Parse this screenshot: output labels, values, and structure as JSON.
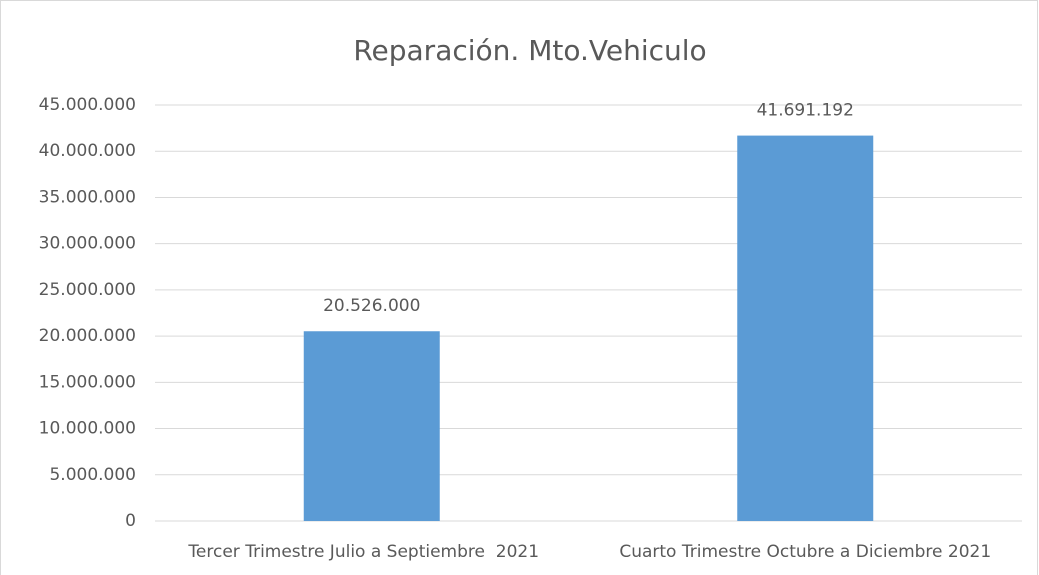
{
  "chart_data": {
    "type": "bar",
    "title": "Reparación. Mto.Vehiculo",
    "categories": [
      "Tercer Trimestre Julio a Septiembre  2021",
      "Cuarto Trimestre Octubre a Diciembre 2021"
    ],
    "values": [
      20526000,
      41691192
    ],
    "value_labels": [
      "20.526.000",
      "41.691.192"
    ],
    "color": "#5b9bd5",
    "ylim": [
      0,
      45000000
    ],
    "yticks": [
      0,
      {
        "value": 5000000,
        "label": "5.000.000"
      },
      {
        "value": 10000000,
        "label": "10.000.000"
      },
      {
        "value": 15000000,
        "label": "15.000.000"
      },
      {
        "value": 20000000,
        "label": "20.000.000"
      },
      {
        "value": 25000000,
        "label": "25.000.000"
      },
      {
        "value": 30000000,
        "label": "30.000.000"
      },
      {
        "value": 35000000,
        "label": "35.000.000"
      },
      {
        "value": 40000000,
        "label": "40.000.000"
      },
      {
        "value": 45000000,
        "label": "45.000.000"
      }
    ],
    "grid": true
  }
}
